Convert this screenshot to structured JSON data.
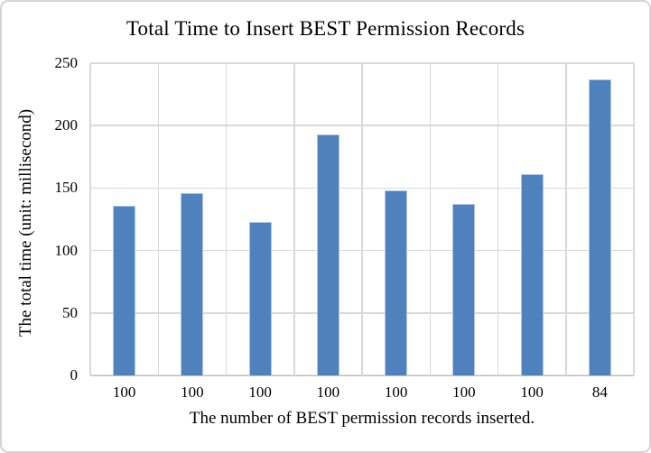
{
  "window": {
    "background_color": "#ffffff",
    "frame_border_color": "#d4d4d4"
  },
  "chart_data": {
    "type": "bar",
    "title": "Total Time to Insert BEST Permission Records",
    "xlabel": "The number of BEST permission records inserted.",
    "ylabel": "The total time (unit: millisecond)",
    "categories": [
      "100",
      "100",
      "100",
      "100",
      "100",
      "100",
      "100",
      "84"
    ],
    "values": [
      136,
      146,
      123,
      193,
      148,
      137,
      161,
      237
    ],
    "yticks": [
      0,
      50,
      100,
      150,
      200,
      250
    ],
    "ylim": [
      0,
      250
    ],
    "grid": "horizontal-and-vertical",
    "legend_position": "none",
    "bar_color": "#4F81BD",
    "bar_border_color": "#aec6e2",
    "gridline_color": "#d9d9d9",
    "axis_line_color": "#c3c3c3"
  }
}
